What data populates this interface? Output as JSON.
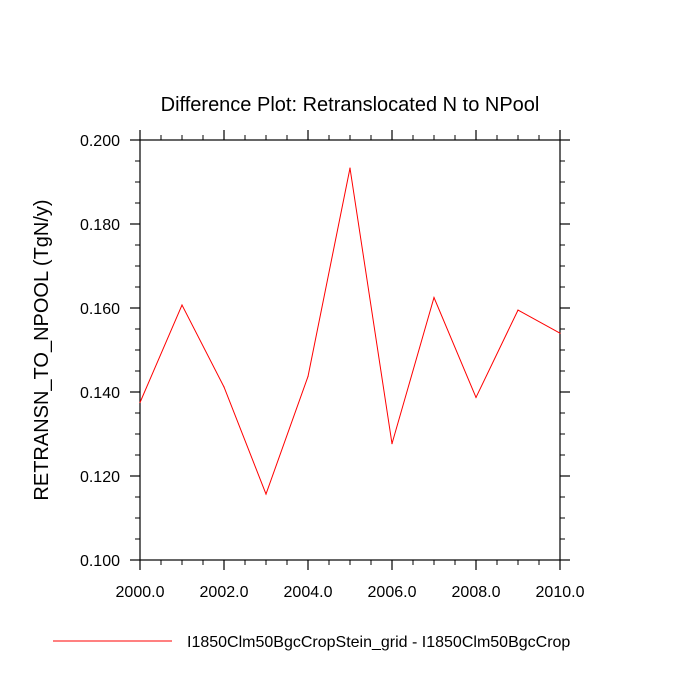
{
  "chart_data": {
    "type": "line",
    "title": "Difference Plot: Retranslocated N to NPool",
    "xlabel": "",
    "ylabel": "RETRANSN_TO_NPOOL  (TgN/y)",
    "xlim": [
      2000.0,
      2010.0
    ],
    "ylim": [
      0.1,
      0.2
    ],
    "xticks": [
      2000.0,
      2002.0,
      2004.0,
      2006.0,
      2008.0,
      2010.0
    ],
    "xtick_labels": [
      "2000.0",
      "2002.0",
      "2004.0",
      "2006.0",
      "2008.0",
      "2010.0"
    ],
    "yticks": [
      0.1,
      0.12,
      0.14,
      0.16,
      0.18,
      0.2
    ],
    "ytick_labels": [
      "0.100",
      "0.120",
      "0.140",
      "0.160",
      "0.180",
      "0.200"
    ],
    "grid": false,
    "legend_position": "bottom",
    "series": [
      {
        "name": "I1850Clm50BgcCropStein_grid - I1850Clm50BgcCrop",
        "color": "#ff0000",
        "x": [
          2000,
          2001,
          2002,
          2003,
          2004,
          2005,
          2006,
          2007,
          2008,
          2009,
          2010
        ],
        "y": [
          0.1375,
          0.1607,
          0.1412,
          0.1157,
          0.1437,
          0.1933,
          0.1277,
          0.1625,
          0.1387,
          0.1595,
          0.154
        ]
      }
    ]
  }
}
